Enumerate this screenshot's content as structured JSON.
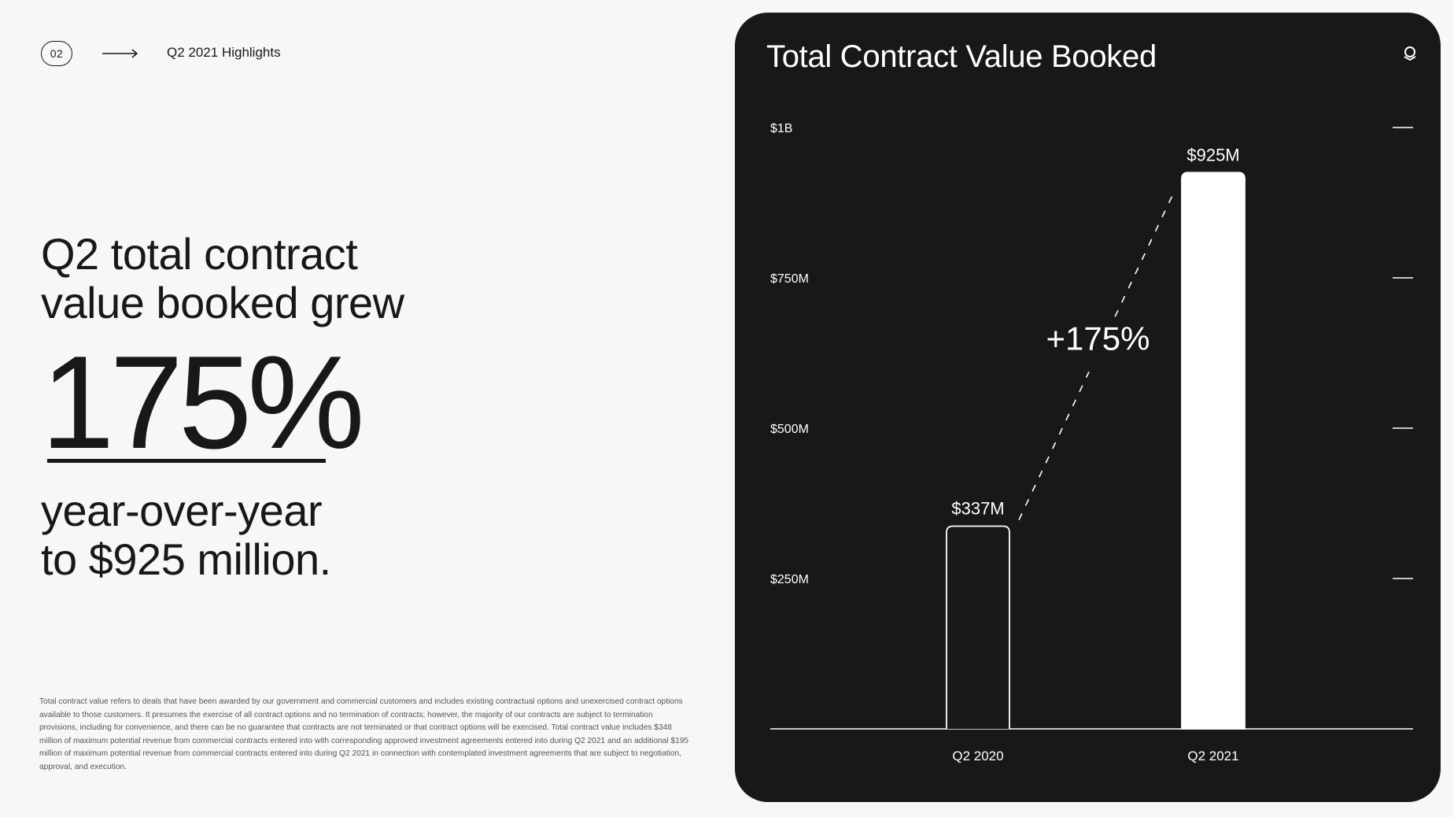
{
  "header": {
    "page_number": "02",
    "section_title": "Q2 2021 Highlights"
  },
  "headline": {
    "line1": "Q2 total contract",
    "line2": "value booked grew",
    "big_value": "175%",
    "sub_line1": "year-over-year",
    "sub_line2": "to $925 million."
  },
  "footnote": "Total contract value refers to deals that have been awarded by our government and commercial customers and includes existing contractual options and unexercised contract options available to those customers. It presumes the exercise of all contract options and no termination of contracts; however, the majority of our contracts are subject to termination provisions, including for convenience, and there can be no guarantee that contracts are not terminated or that contract options will be exercised. Total contract value includes $348 million of maximum potential revenue from commercial contracts entered into with corresponding approved investment agreements entered into during Q2 2021 and an additional $195 million of maximum potential revenue from commercial contracts entered into during Q2 2021 in connection with contemplated investment agreements that are subject to negotiation, approval, and execution.",
  "panel": {
    "logo_icon": "palantir-logo-icon"
  },
  "colors": {
    "panel_bg": "#18181b",
    "page_bg": "#f7f7f7",
    "bar_fill_latest": "#ffffff"
  },
  "chart_data": {
    "type": "bar",
    "title": "Total Contract Value Booked",
    "categories": [
      "Q2 2020",
      "Q2 2021"
    ],
    "values": [
      337,
      925
    ],
    "value_labels": [
      "$337M",
      "$925M"
    ],
    "unit": "millions USD",
    "ylim": [
      0,
      1000
    ],
    "y_ticks": [
      250,
      500,
      750,
      1000
    ],
    "y_tick_labels": [
      "$250M",
      "$500M",
      "$750M",
      "$1B"
    ],
    "annotation": "+175%",
    "grid": false,
    "legend": "none"
  }
}
